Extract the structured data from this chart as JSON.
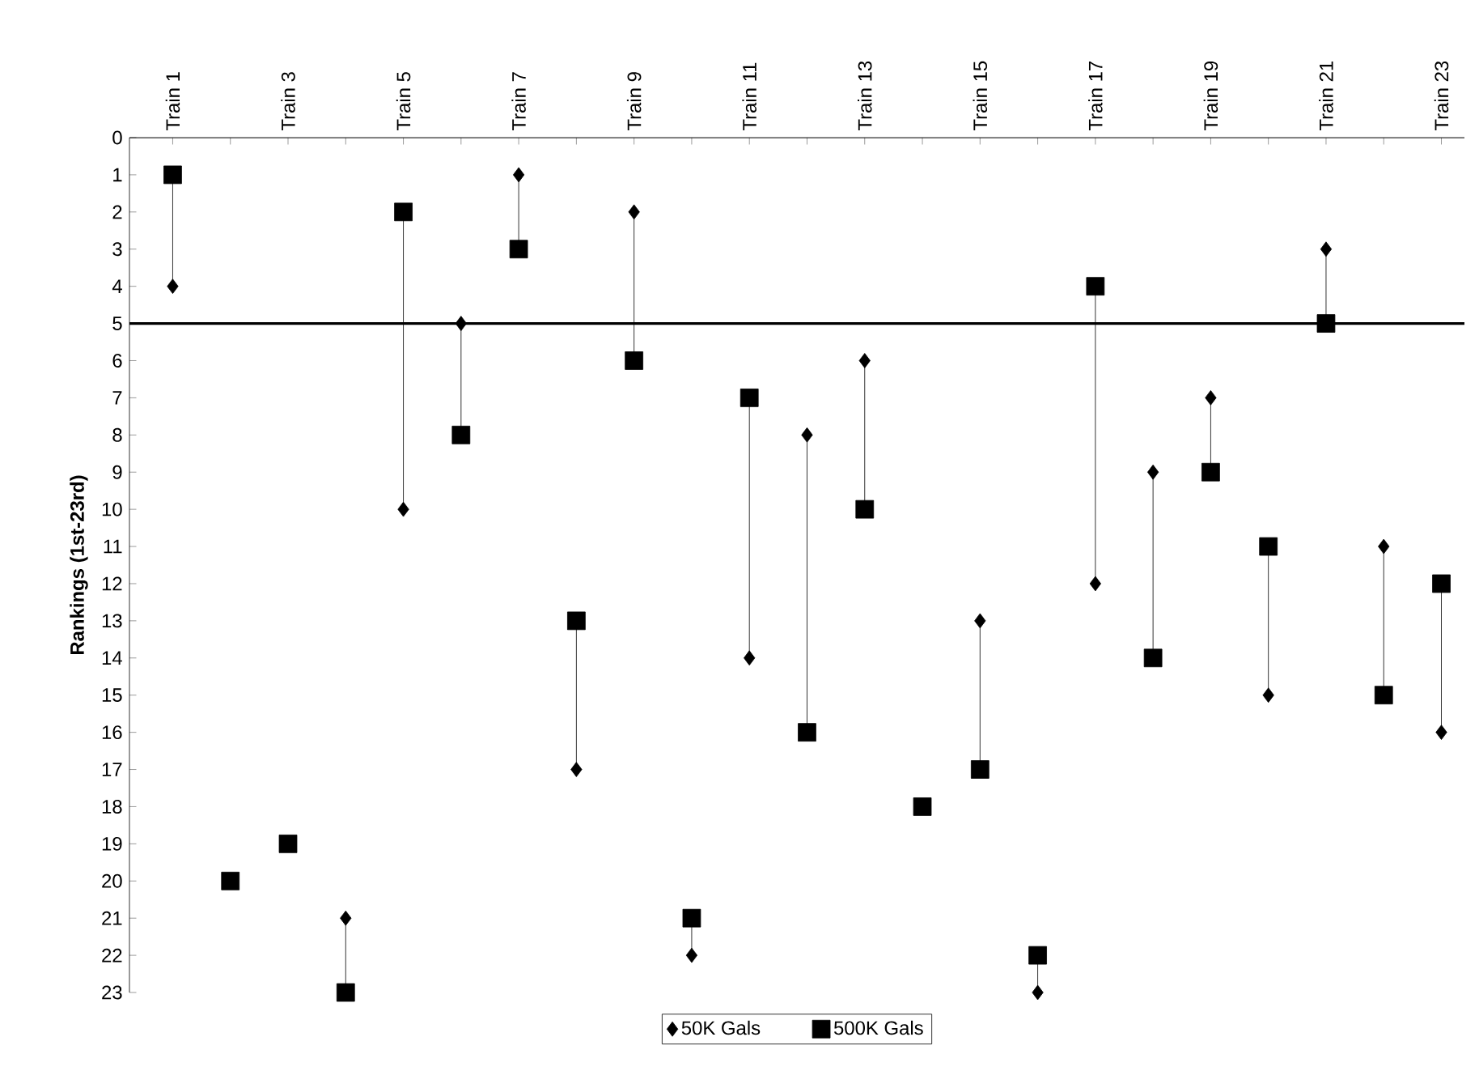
{
  "chart_data": {
    "type": "scatter",
    "ylabel": "Rankings (1st-23rd)",
    "categories": [
      "Train 1",
      null,
      "Train 3",
      null,
      "Train 5",
      null,
      "Train 7",
      null,
      "Train 9",
      null,
      "Train 11",
      null,
      "Train 13",
      null,
      "Train 15",
      null,
      "Train 17",
      null,
      "Train 19",
      null,
      "Train 21",
      null,
      "Train 23"
    ],
    "series": [
      {
        "name": "50K Gals",
        "color": "#000000",
        "marker": "diamond",
        "values": [
          4,
          null,
          null,
          21,
          10,
          5,
          1,
          17,
          2,
          22,
          14,
          8,
          6,
          null,
          13,
          23,
          12,
          9,
          7,
          15,
          3,
          11,
          16
        ]
      },
      {
        "name": "500K Gals",
        "color": "#000000",
        "marker": "square",
        "values": [
          1,
          20,
          19,
          23,
          2,
          8,
          3,
          13,
          6,
          21,
          7,
          16,
          10,
          18,
          17,
          22,
          4,
          14,
          9,
          11,
          5,
          15,
          12
        ]
      }
    ],
    "ylim": [
      23,
      0
    ],
    "yticks": [
      0,
      1,
      2,
      3,
      4,
      5,
      6,
      7,
      8,
      9,
      10,
      11,
      12,
      13,
      14,
      15,
      16,
      17,
      18,
      19,
      20,
      21,
      22,
      23
    ],
    "ref_lines": [
      {
        "axis": "y",
        "value": 5,
        "color": "#000000"
      }
    ],
    "grid": false,
    "legend": "bottom"
  }
}
